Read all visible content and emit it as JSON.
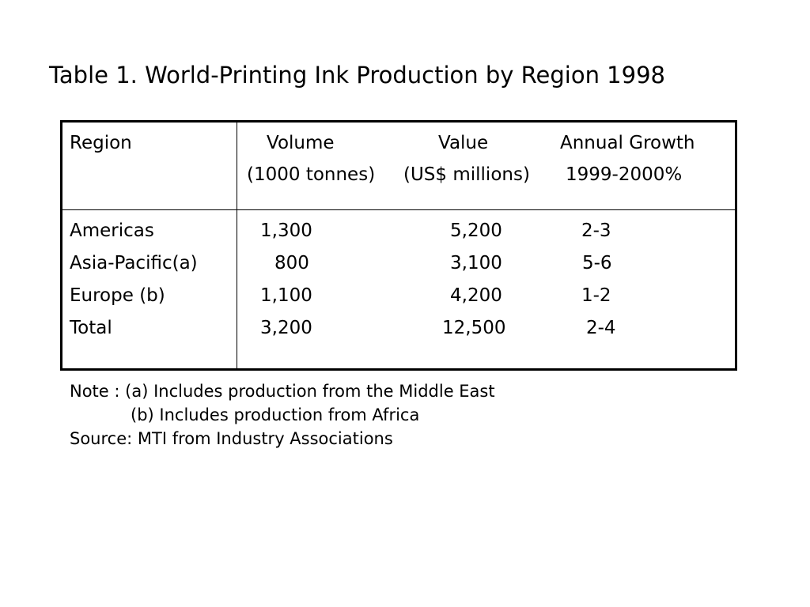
{
  "title": "Table 1. World-Printing Ink Production by Region 1998",
  "table": {
    "header": {
      "region": "Region",
      "volume_line1": "Volume",
      "volume_line2": "(1000 tonnes)",
      "value_line1": "Value",
      "value_line2": "(US$ millions)",
      "growth_line1": "Annual Growth",
      "growth_line2": "1999-2000%"
    },
    "rows": [
      {
        "region": "Americas",
        "volume": "1,300",
        "value": "5,200",
        "growth": "2-3"
      },
      {
        "region": "Asia-Pacific(a)",
        "volume": "800",
        "value": "3,100",
        "growth": "5-6"
      },
      {
        "region": "Europe (b)",
        "volume": "1,100",
        "value": "4,200",
        "growth": "1-2"
      },
      {
        "region": "Total",
        "volume": "3,200",
        "value": "12,500",
        "growth": "2-4"
      }
    ]
  },
  "notes": {
    "note_a": "Note : (a) Includes production from the Middle East",
    "note_b": "(b) Includes production from Africa",
    "source": "Source: MTI from Industry Associations"
  }
}
